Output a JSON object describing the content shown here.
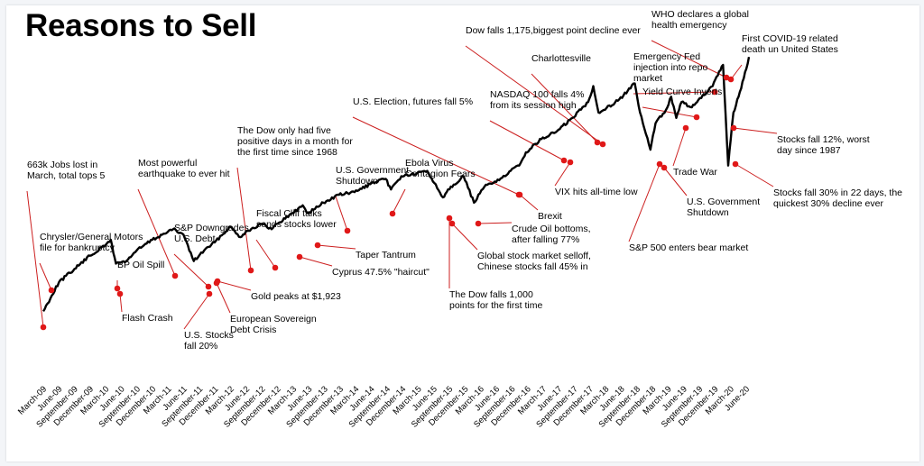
{
  "chart_data": {
    "type": "line",
    "title": "Reasons to Sell",
    "x_tick_labels": [
      "March-09",
      "June-09",
      "September-09",
      "December-09",
      "March-10",
      "June-10",
      "September-10",
      "December-10",
      "March-11",
      "June-11",
      "September-11",
      "December-11",
      "March-12",
      "June-12",
      "September-12",
      "December-12",
      "March-13",
      "June-13",
      "September-13",
      "December-13",
      "March-14",
      "June-14",
      "September-14",
      "December-14",
      "March-15",
      "June-15",
      "September-15",
      "December-15",
      "March-16",
      "June-16",
      "September-16",
      "December-16",
      "March-17",
      "June-17",
      "September-17",
      "December-17",
      "March-18",
      "June-18",
      "September-18",
      "December-18",
      "March-19",
      "June-19",
      "September-19",
      "December-19",
      "March-20",
      "June-20"
    ],
    "series": [
      {
        "x": [
          "2009-03",
          "2009-06",
          "2009-09",
          "2009-12",
          "2010-03",
          "2010-04",
          "2010-05",
          "2010-07",
          "2010-09",
          "2010-12",
          "2011-03",
          "2011-04",
          "2011-06",
          "2011-08",
          "2011-10",
          "2011-12",
          "2012-03",
          "2012-05",
          "2012-06",
          "2012-09",
          "2012-11",
          "2012-12",
          "2013-03",
          "2013-05",
          "2013-06",
          "2013-09",
          "2013-12",
          "2014-03",
          "2014-06",
          "2014-09",
          "2014-10",
          "2014-12",
          "2015-03",
          "2015-05",
          "2015-08",
          "2015-09",
          "2015-12",
          "2016-02",
          "2016-04",
          "2016-06",
          "2016-08",
          "2016-11",
          "2016-12",
          "2017-03",
          "2017-06",
          "2017-09",
          "2017-12",
          "2018-01",
          "2018-02",
          "2018-03",
          "2018-06",
          "2018-09",
          "2018-10",
          "2018-12",
          "2019-01",
          "2019-03",
          "2019-04",
          "2019-05",
          "2019-06",
          "2019-08",
          "2019-09",
          "2019-12",
          "2020-01",
          "2020-02",
          "2020-03",
          "2020-04",
          "2020-05",
          "2020-06",
          "2020-07"
        ],
        "y": [
          7,
          18,
          23,
          28,
          32,
          34,
          25,
          26,
          30,
          34,
          37,
          38,
          36,
          26,
          30,
          33,
          39,
          35,
          37,
          40,
          38,
          40,
          44,
          47,
          44,
          48,
          51,
          52,
          55,
          57,
          53,
          58,
          59,
          60,
          50,
          53,
          58,
          48,
          54,
          56,
          58,
          63,
          67,
          72,
          75,
          80,
          86,
          92,
          82,
          83,
          87,
          93,
          82,
          68,
          78,
          83,
          88,
          80,
          86,
          84,
          86,
          92,
          96,
          100,
          62,
          82,
          88,
          95,
          103
        ]
      }
    ],
    "xlabel": "",
    "ylabel": "",
    "grid": false,
    "legend": "none",
    "annotations": [
      {
        "date": "2009-03",
        "y": 7,
        "text": [
          "663k Jobs lost in",
          "March, total tops 5"
        ]
      },
      {
        "date": "2009-06",
        "y": 18,
        "text": [
          "Chrysler/General Motors",
          "file for bankruptcy"
        ]
      },
      {
        "date": "2010-05",
        "y": 25,
        "text": [
          "Flash Crash"
        ]
      },
      {
        "date": "2010-04",
        "y": 34,
        "text": [
          "BP Oil Spill"
        ]
      },
      {
        "date": "2011-04",
        "y": 38,
        "text": [
          "Most powerful",
          "earthquake to ever hit"
        ]
      },
      {
        "date": "2011-06",
        "y": 36,
        "text": [
          "S&P Downgrades",
          "U.S. Debt"
        ]
      },
      {
        "date": "2011-08",
        "y": 26,
        "text": [
          "U.S. Stocks",
          "fall 20%"
        ]
      },
      {
        "date": "2011-10",
        "y": 30,
        "text": [
          "European Sovereign",
          "Debt Crisis"
        ]
      },
      {
        "date": "2011-09",
        "y": 32,
        "text": [
          "Gold peaks at $1,923"
        ]
      },
      {
        "date": "2012-05",
        "y": 35,
        "text": [
          "The Dow only had five",
          "positive days in a month for",
          "the first time since 1968"
        ]
      },
      {
        "date": "2012-11",
        "y": 38,
        "text": [
          "Fiscal Cliff talks",
          "sends stocks lower"
        ]
      },
      {
        "date": "2013-03",
        "y": 44,
        "text": [
          "Cyprus 47.5% \"haircut\""
        ]
      },
      {
        "date": "2013-06",
        "y": 44,
        "text": [
          "Taper Tantrum"
        ]
      },
      {
        "date": "2013-10",
        "y": 49,
        "text": [
          "U.S. Government",
          "Shutdown"
        ]
      },
      {
        "date": "2014-10",
        "y": 53,
        "text": [
          "Ebola Virus",
          "Contagion Fears"
        ]
      },
      {
        "date": "2015-08",
        "y": 50,
        "text": [
          "The Dow falls 1,000",
          "points for the first time"
        ]
      },
      {
        "date": "2015-12",
        "y": 58,
        "text": [
          "Global stock market selloff,",
          "Chinese stocks fall 45% in"
        ]
      },
      {
        "date": "2016-02",
        "y": 48,
        "text": [
          "Crude Oil bottoms,",
          "after falling 77%"
        ]
      },
      {
        "date": "2016-06",
        "y": 56,
        "text": [
          "Brexit"
        ]
      },
      {
        "date": "2016-11",
        "y": 63,
        "text": [
          "U.S. Election, futures fall 5%"
        ]
      },
      {
        "date": "2017-08",
        "y": 79,
        "text": [
          "NASDAQ 100 falls 4%",
          "from its  session high"
        ]
      },
      {
        "date": "2017-09",
        "y": 80,
        "text": [
          "VIX hits all-time low"
        ]
      },
      {
        "date": "2018-02",
        "y": 82,
        "text": [
          "Dow falls 1,175,biggest point decline ever"
        ]
      },
      {
        "date": "2017-08",
        "y": 79,
        "text": [
          "Charlottesville"
        ]
      },
      {
        "date": "2018-12",
        "y": 68,
        "text": [
          "S&P 500 enters bear market"
        ]
      },
      {
        "date": "2019-01",
        "y": 70,
        "text": [
          "U.S. Government",
          "Shutdown"
        ]
      },
      {
        "date": "2019-05",
        "y": 80,
        "text": [
          "Trade War"
        ]
      },
      {
        "date": "2019-08",
        "y": 84,
        "text": [
          "Yield Curve Inverts"
        ]
      },
      {
        "date": "2019-09",
        "y": 86,
        "text": [
          "Emergency Fed",
          "injection into repo",
          "market"
        ]
      },
      {
        "date": "2020-01",
        "y": 96,
        "text": [
          "WHO declares a global",
          "health emergency"
        ]
      },
      {
        "date": "2020-02",
        "y": 100,
        "text": [
          "First COVID-19 related",
          "death un United States"
        ]
      },
      {
        "date": "2020-03",
        "y": 78,
        "text": [
          "Stocks fall 12%, worst",
          "day since 1987"
        ]
      },
      {
        "date": "2020-03",
        "y": 62,
        "text": [
          "Stocks fall 30% in 22 days, the",
          "quickest 30% decline ever"
        ]
      }
    ]
  }
}
